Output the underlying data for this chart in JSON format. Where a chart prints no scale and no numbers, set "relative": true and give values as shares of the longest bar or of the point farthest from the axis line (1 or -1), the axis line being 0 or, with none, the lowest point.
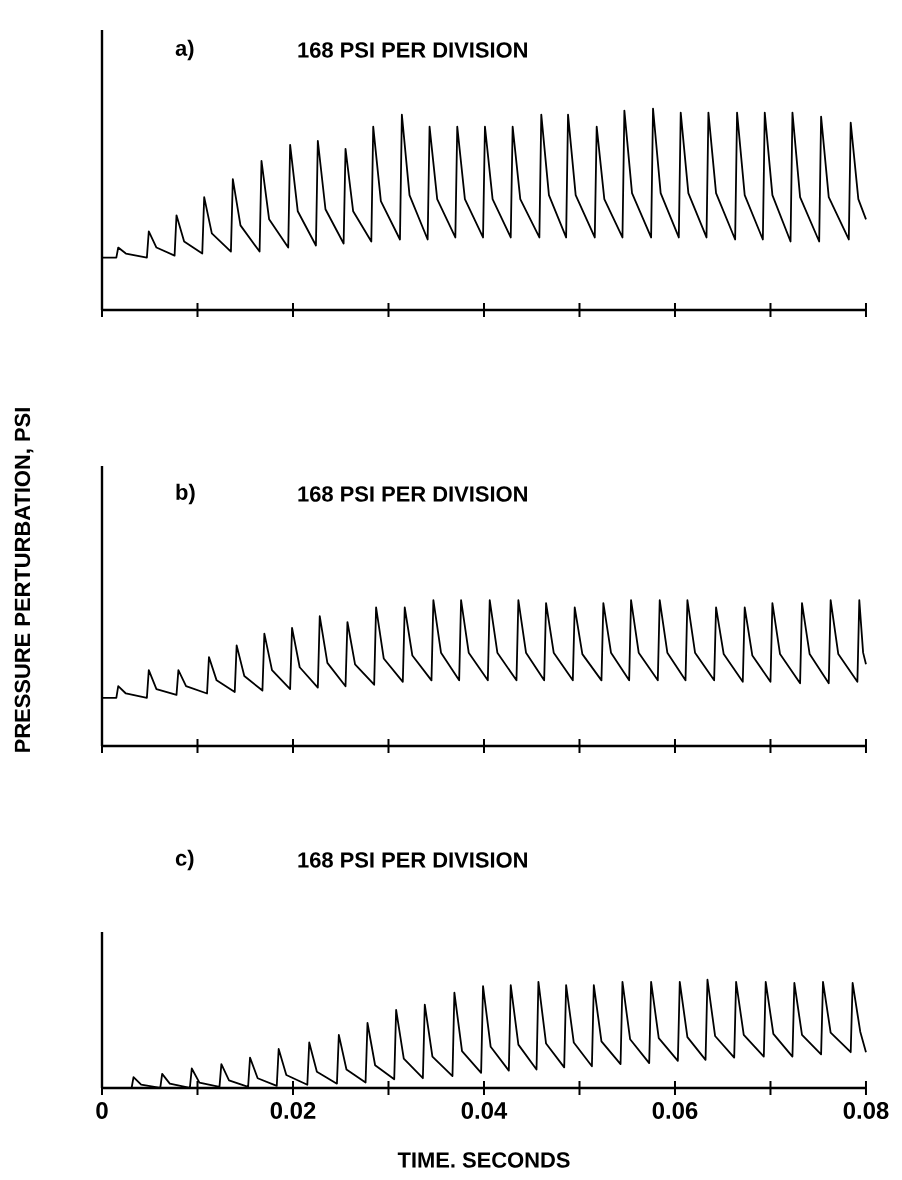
{
  "chart_data": [
    {
      "type": "line",
      "title": "a)",
      "subtitle": "168 PSI PER DIVISION",
      "relative": true,
      "tick_labels": false,
      "xlim": [
        0,
        0.08
      ],
      "xticks": [
        {
          "value": 0,
          "label": null
        },
        {
          "value": 0.01,
          "label": null
        },
        {
          "value": 0.02,
          "label": null
        },
        {
          "value": 0.03,
          "label": null
        },
        {
          "value": 0.04,
          "label": null
        },
        {
          "value": 0.05,
          "label": null
        },
        {
          "value": 0.06,
          "label": null
        },
        {
          "value": 0.07,
          "label": null
        },
        {
          "value": 0.08,
          "label": null
        }
      ],
      "series": [
        {
          "color": "#000000",
          "x": [
            0,
            0.0015,
            0.0017,
            0.0025,
            0.0047,
            0.0049,
            0.0057,
            0.0076,
            0.0078,
            0.0086,
            0.0105,
            0.0107,
            0.0115,
            0.0135,
            0.0137,
            0.0145,
            0.0165,
            0.0167,
            0.0175,
            0.0195,
            0.0197,
            0.0205,
            0.0224,
            0.0226,
            0.0234,
            0.0253,
            0.0255,
            0.0263,
            0.0282,
            0.0284,
            0.0292,
            0.0312,
            0.0314,
            0.0322,
            0.0341,
            0.0343,
            0.0351,
            0.037,
            0.0372,
            0.038,
            0.0399,
            0.0401,
            0.0409,
            0.0428,
            0.043,
            0.0438,
            0.0458,
            0.046,
            0.0468,
            0.0486,
            0.0488,
            0.0496,
            0.0516,
            0.0518,
            0.0526,
            0.0545,
            0.0547,
            0.0555,
            0.0575,
            0.0577,
            0.0585,
            0.0604,
            0.0606,
            0.0614,
            0.0633,
            0.0635,
            0.0643,
            0.0663,
            0.0665,
            0.0673,
            0.0692,
            0.0694,
            0.0702,
            0.0721,
            0.0723,
            0.0731,
            0.0751,
            0.0753,
            0.0761,
            0.0782,
            0.0784,
            0.0792,
            0.08
          ],
          "values": [
            0.26,
            0.26,
            0.31,
            0.28,
            0.26,
            0.39,
            0.31,
            0.27,
            0.47,
            0.34,
            0.28,
            0.56,
            0.38,
            0.29,
            0.65,
            0.42,
            0.29,
            0.74,
            0.45,
            0.31,
            0.82,
            0.49,
            0.32,
            0.84,
            0.5,
            0.33,
            0.8,
            0.49,
            0.34,
            0.91,
            0.54,
            0.35,
            0.97,
            0.57,
            0.35,
            0.91,
            0.55,
            0.36,
            0.91,
            0.55,
            0.36,
            0.91,
            0.55,
            0.36,
            0.91,
            0.55,
            0.36,
            0.97,
            0.57,
            0.36,
            0.97,
            0.57,
            0.36,
            0.91,
            0.55,
            0.36,
            0.99,
            0.58,
            0.36,
            1.0,
            0.58,
            0.36,
            0.98,
            0.58,
            0.36,
            0.98,
            0.58,
            0.35,
            0.98,
            0.57,
            0.35,
            0.98,
            0.57,
            0.34,
            0.98,
            0.56,
            0.34,
            0.96,
            0.56,
            0.35,
            0.93,
            0.55,
            0.45
          ]
        }
      ]
    },
    {
      "type": "line",
      "title": "b)",
      "subtitle": "168 PSI PER DIVISION",
      "ylabel": "PRESSURE PERTURBATION, PSI",
      "relative": true,
      "tick_labels": false,
      "xlim": [
        0,
        0.08
      ],
      "xticks": [
        {
          "value": 0,
          "label": null
        },
        {
          "value": 0.01,
          "label": null
        },
        {
          "value": 0.02,
          "label": null
        },
        {
          "value": 0.03,
          "label": null
        },
        {
          "value": 0.04,
          "label": null
        },
        {
          "value": 0.05,
          "label": null
        },
        {
          "value": 0.06,
          "label": null
        },
        {
          "value": 0.07,
          "label": null
        },
        {
          "value": 0.08,
          "label": null
        }
      ],
      "series": [
        {
          "color": "#000000",
          "x": [
            0,
            0.0015,
            0.0017,
            0.0025,
            0.0047,
            0.0049,
            0.0057,
            0.0078,
            0.008,
            0.0088,
            0.011,
            0.0112,
            0.012,
            0.0139,
            0.0141,
            0.0149,
            0.0168,
            0.017,
            0.0178,
            0.0197,
            0.0199,
            0.0207,
            0.0226,
            0.0228,
            0.0236,
            0.0255,
            0.0257,
            0.0265,
            0.0285,
            0.0287,
            0.0295,
            0.0315,
            0.0317,
            0.0325,
            0.0345,
            0.0347,
            0.0355,
            0.0374,
            0.0376,
            0.0384,
            0.0404,
            0.0406,
            0.0414,
            0.0434,
            0.0436,
            0.0444,
            0.0463,
            0.0465,
            0.0473,
            0.0493,
            0.0495,
            0.0503,
            0.0523,
            0.0525,
            0.0533,
            0.0552,
            0.0554,
            0.0562,
            0.0582,
            0.0584,
            0.0592,
            0.0611,
            0.0613,
            0.0621,
            0.0641,
            0.0643,
            0.0651,
            0.0671,
            0.0673,
            0.0681,
            0.07,
            0.0702,
            0.071,
            0.0731,
            0.0733,
            0.0741,
            0.0761,
            0.0763,
            0.0771,
            0.0791,
            0.0793,
            0.0797,
            0.08
          ],
          "values": [
            0.33,
            0.33,
            0.41,
            0.36,
            0.33,
            0.52,
            0.39,
            0.35,
            0.52,
            0.41,
            0.36,
            0.61,
            0.45,
            0.37,
            0.69,
            0.48,
            0.38,
            0.77,
            0.52,
            0.39,
            0.81,
            0.54,
            0.4,
            0.89,
            0.57,
            0.41,
            0.85,
            0.56,
            0.42,
            0.95,
            0.6,
            0.44,
            0.95,
            0.62,
            0.45,
            1.0,
            0.64,
            0.45,
            1.0,
            0.64,
            0.45,
            1.0,
            0.64,
            0.45,
            1.0,
            0.64,
            0.45,
            0.98,
            0.64,
            0.45,
            0.95,
            0.63,
            0.45,
            0.98,
            0.64,
            0.45,
            1.0,
            0.64,
            0.45,
            1.0,
            0.64,
            0.45,
            1.0,
            0.64,
            0.45,
            0.95,
            0.63,
            0.44,
            0.95,
            0.62,
            0.44,
            0.98,
            0.63,
            0.43,
            0.98,
            0.63,
            0.43,
            1.0,
            0.63,
            0.44,
            1.0,
            0.64,
            0.56
          ]
        }
      ]
    },
    {
      "type": "line",
      "title": "c)",
      "subtitle": "168 PSI PER DIVISION",
      "xlabel": "TIME. SECONDS",
      "relative": true,
      "tick_labels": "x",
      "xlim": [
        0,
        0.08
      ],
      "xticks": [
        0,
        {
          "value": 0.01,
          "label": null
        },
        0.02,
        {
          "value": 0.03,
          "label": null
        },
        0.04,
        {
          "value": 0.05,
          "label": null
        },
        0.06,
        {
          "value": 0.07,
          "label": null
        },
        0.08
      ],
      "series": [
        {
          "color": "#000000",
          "x": [
            0,
            0.0031,
            0.0033,
            0.0041,
            0.0061,
            0.0063,
            0.0071,
            0.0092,
            0.0094,
            0.0102,
            0.0123,
            0.0125,
            0.0133,
            0.0153,
            0.0155,
            0.0163,
            0.0183,
            0.0185,
            0.0193,
            0.0215,
            0.0217,
            0.0225,
            0.0246,
            0.0248,
            0.0256,
            0.0276,
            0.0278,
            0.0286,
            0.0306,
            0.0308,
            0.0316,
            0.0336,
            0.0338,
            0.0346,
            0.0367,
            0.0369,
            0.0377,
            0.0397,
            0.0399,
            0.0407,
            0.0426,
            0.0428,
            0.0436,
            0.0455,
            0.0457,
            0.0465,
            0.0484,
            0.0486,
            0.0494,
            0.0513,
            0.0515,
            0.0523,
            0.0543,
            0.0545,
            0.0553,
            0.0573,
            0.0575,
            0.0583,
            0.0603,
            0.0605,
            0.0613,
            0.0632,
            0.0634,
            0.0642,
            0.0662,
            0.0664,
            0.0672,
            0.0693,
            0.0695,
            0.0703,
            0.0723,
            0.0725,
            0.0733,
            0.0753,
            0.0755,
            0.0763,
            0.0784,
            0.0786,
            0.0794,
            0.08
          ],
          "values": [
            0,
            0,
            0.1,
            0.03,
            0,
            0.13,
            0.04,
            0,
            0.18,
            0.05,
            0.01,
            0.22,
            0.07,
            0.01,
            0.28,
            0.09,
            0.02,
            0.36,
            0.12,
            0.03,
            0.42,
            0.15,
            0.04,
            0.49,
            0.17,
            0.05,
            0.6,
            0.21,
            0.08,
            0.72,
            0.27,
            0.09,
            0.77,
            0.29,
            0.11,
            0.88,
            0.34,
            0.14,
            0.94,
            0.38,
            0.16,
            0.95,
            0.4,
            0.17,
            0.98,
            0.41,
            0.19,
            0.95,
            0.42,
            0.2,
            0.95,
            0.43,
            0.22,
            0.98,
            0.45,
            0.23,
            0.98,
            0.46,
            0.25,
            0.98,
            0.47,
            0.26,
            1.0,
            0.48,
            0.28,
            0.98,
            0.49,
            0.29,
            0.98,
            0.5,
            0.29,
            0.97,
            0.49,
            0.31,
            0.98,
            0.51,
            0.33,
            0.97,
            0.52,
            0.33
          ]
        }
      ]
    }
  ]
}
